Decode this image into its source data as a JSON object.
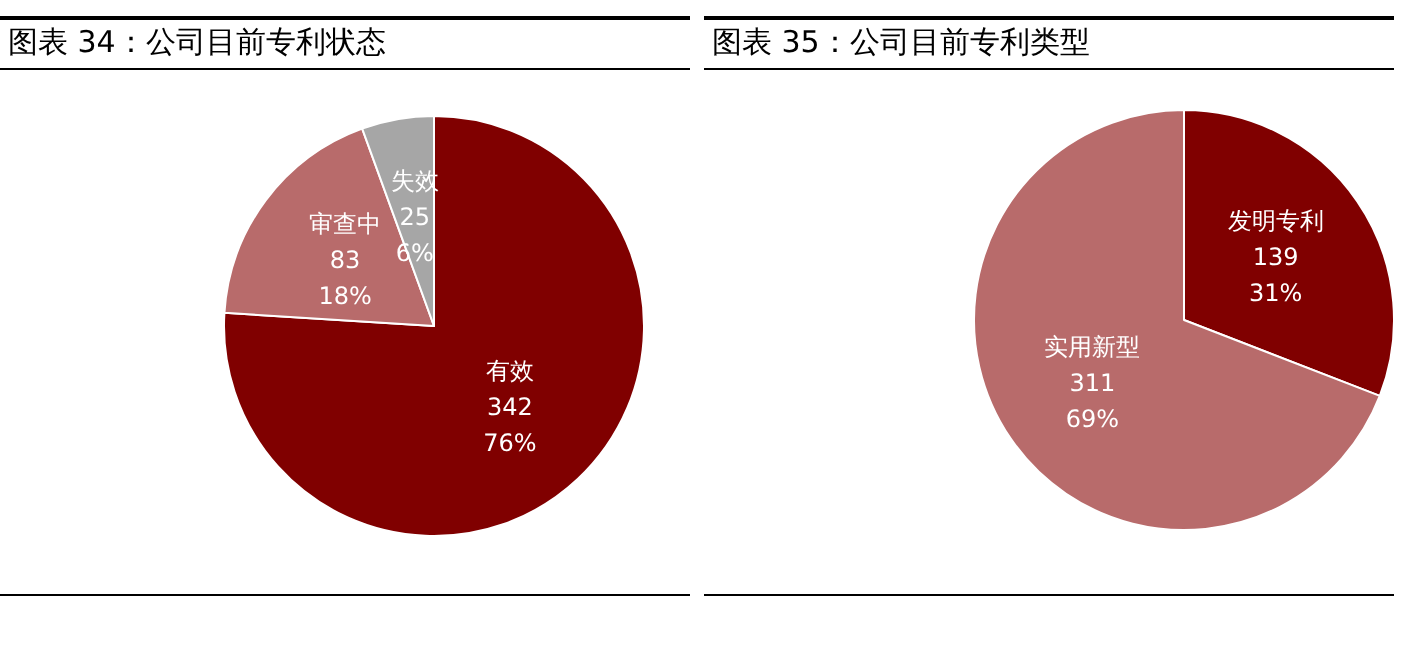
{
  "chart_data": [
    {
      "type": "pie",
      "title": "图表 34：公司目前专利状态",
      "categories": [
        "有效",
        "审查中",
        "失效"
      ],
      "values": [
        342,
        83,
        25
      ],
      "colors": [
        "#800000",
        "#b86b6b",
        "#a6a6a6"
      ],
      "value_labels": [
        "342\n76%",
        "83\n18%",
        "25\n6%"
      ],
      "legend": false
    },
    {
      "type": "pie",
      "title": "图表 35：公司目前专利类型",
      "categories": [
        "发明专利",
        "实用新型"
      ],
      "values": [
        139,
        311
      ],
      "colors": [
        "#800000",
        "#b86b6b"
      ],
      "value_labels": [
        "139\n31%",
        "311\n69%"
      ],
      "legend": false
    }
  ]
}
